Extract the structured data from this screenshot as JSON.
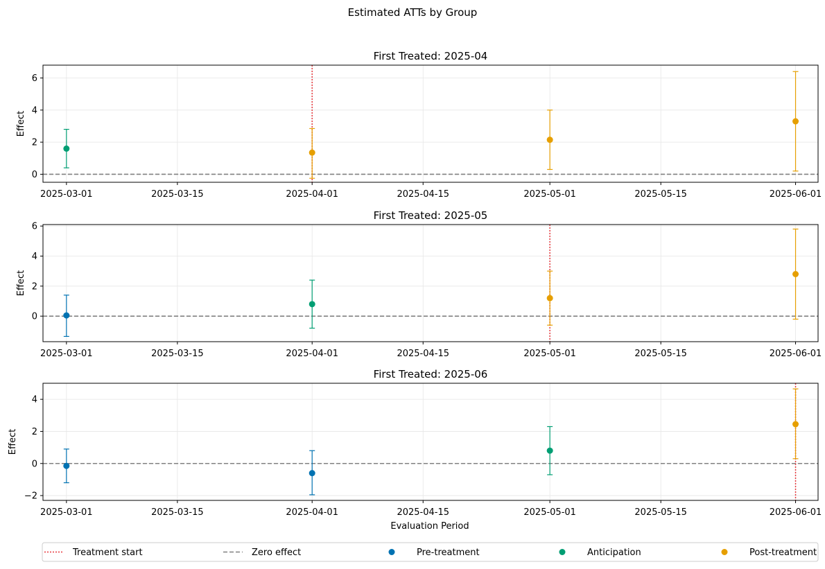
{
  "chart_data": {
    "type": "scatter",
    "title": "Estimated ATTs by Group",
    "xlabel": "Evaluation Period",
    "ylabel": "Effect",
    "grid": true,
    "legend_placement": "bottom",
    "x_ticks": [
      "2025-03-01",
      "2025-03-15",
      "2025-04-01",
      "2025-04-15",
      "2025-05-01",
      "2025-05-15",
      "2025-06-01"
    ],
    "colors": {
      "Pre-treatment": "#0072b2",
      "Anticipation": "#009e73",
      "Post-treatment": "#e69f00",
      "Treatment start": "#e8383d",
      "Zero effect": "#808080"
    },
    "legend": [
      {
        "label": "Treatment start",
        "kind": "dotted-line",
        "color_key": "Treatment start"
      },
      {
        "label": "Zero effect",
        "kind": "dashed-line",
        "color_key": "Zero effect"
      },
      {
        "label": "Pre-treatment",
        "kind": "marker",
        "color_key": "Pre-treatment"
      },
      {
        "label": "Anticipation",
        "kind": "marker",
        "color_key": "Anticipation"
      },
      {
        "label": "Post-treatment",
        "kind": "marker",
        "color_key": "Post-treatment"
      }
    ],
    "panels": [
      {
        "title": "First Treated: 2025-04",
        "treatment_start": "2025-04-01",
        "ylim": [
          -0.5,
          6.8
        ],
        "yticks": [
          0,
          2,
          4,
          6
        ],
        "show_xlabel": false,
        "points": [
          {
            "x": "2025-03-01",
            "y": 1.6,
            "lo": 0.4,
            "hi": 2.8,
            "phase": "Anticipation"
          },
          {
            "x": "2025-04-01",
            "y": 1.35,
            "lo": -0.25,
            "hi": 2.85,
            "phase": "Post-treatment"
          },
          {
            "x": "2025-05-01",
            "y": 2.15,
            "lo": 0.3,
            "hi": 4.0,
            "phase": "Post-treatment"
          },
          {
            "x": "2025-06-01",
            "y": 3.3,
            "lo": 0.2,
            "hi": 6.4,
            "phase": "Post-treatment"
          }
        ]
      },
      {
        "title": "First Treated: 2025-05",
        "treatment_start": "2025-05-01",
        "ylim": [
          -1.7,
          6.1
        ],
        "yticks": [
          0,
          2,
          4,
          6
        ],
        "show_xlabel": false,
        "points": [
          {
            "x": "2025-03-01",
            "y": 0.05,
            "lo": -1.35,
            "hi": 1.4,
            "phase": "Pre-treatment"
          },
          {
            "x": "2025-04-01",
            "y": 0.8,
            "lo": -0.8,
            "hi": 2.4,
            "phase": "Anticipation"
          },
          {
            "x": "2025-05-01",
            "y": 1.2,
            "lo": -0.6,
            "hi": 3.0,
            "phase": "Post-treatment"
          },
          {
            "x": "2025-06-01",
            "y": 2.8,
            "lo": -0.2,
            "hi": 5.8,
            "phase": "Post-treatment"
          }
        ]
      },
      {
        "title": "First Treated: 2025-06",
        "treatment_start": "2025-06-01",
        "ylim": [
          -2.3,
          5.0
        ],
        "yticks": [
          -2,
          0,
          2,
          4
        ],
        "show_xlabel": true,
        "points": [
          {
            "x": "2025-03-01",
            "y": -0.15,
            "lo": -1.2,
            "hi": 0.9,
            "phase": "Pre-treatment"
          },
          {
            "x": "2025-04-01",
            "y": -0.6,
            "lo": -1.95,
            "hi": 0.8,
            "phase": "Pre-treatment"
          },
          {
            "x": "2025-05-01",
            "y": 0.8,
            "lo": -0.7,
            "hi": 2.3,
            "phase": "Anticipation"
          },
          {
            "x": "2025-06-01",
            "y": 2.45,
            "lo": 0.3,
            "hi": 4.65,
            "phase": "Post-treatment"
          }
        ]
      }
    ]
  }
}
